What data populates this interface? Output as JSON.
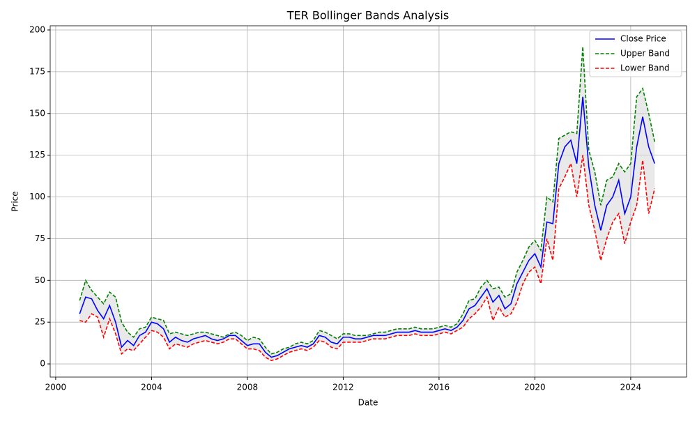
{
  "chart_data": {
    "type": "line",
    "title": "TER Bollinger Bands Analysis",
    "xlabel": "Date",
    "ylabel": "Price",
    "x": [
      2001,
      2001.25,
      2001.5,
      2001.75,
      2002,
      2002.25,
      2002.5,
      2002.75,
      2003,
      2003.25,
      2003.5,
      2003.75,
      2004,
      2004.25,
      2004.5,
      2004.75,
      2005,
      2005.25,
      2005.5,
      2005.75,
      2006,
      2006.25,
      2006.5,
      2006.75,
      2007,
      2007.25,
      2007.5,
      2007.75,
      2008,
      2008.25,
      2008.5,
      2008.75,
      2009,
      2009.25,
      2009.5,
      2009.75,
      2010,
      2010.25,
      2010.5,
      2010.75,
      2011,
      2011.25,
      2011.5,
      2011.75,
      2012,
      2012.25,
      2012.5,
      2012.75,
      2013,
      2013.25,
      2013.5,
      2013.75,
      2014,
      2014.25,
      2014.5,
      2014.75,
      2015,
      2015.25,
      2015.5,
      2015.75,
      2016,
      2016.25,
      2016.5,
      2016.75,
      2017,
      2017.25,
      2017.5,
      2017.75,
      2018,
      2018.25,
      2018.5,
      2018.75,
      2019,
      2019.25,
      2019.5,
      2019.75,
      2020,
      2020.25,
      2020.5,
      2020.75,
      2021,
      2021.25,
      2021.5,
      2021.75,
      2022,
      2022.25,
      2022.5,
      2022.75,
      2023,
      2023.25,
      2023.5,
      2023.75,
      2024,
      2024.25,
      2024.5,
      2024.75,
      2025
    ],
    "series": [
      {
        "name": "Close Price",
        "color": "#0000ff",
        "dash": false,
        "values": [
          30,
          40,
          39,
          32,
          27,
          35,
          25,
          10,
          14,
          11,
          17,
          19,
          25,
          24,
          21,
          13,
          16,
          14,
          13,
          15,
          16,
          17,
          15,
          14,
          15,
          17,
          17,
          14,
          11,
          12,
          12,
          7,
          4,
          5,
          7,
          9,
          10,
          11,
          10,
          12,
          17,
          16,
          13,
          12,
          16,
          16,
          15,
          15,
          16,
          17,
          17,
          17,
          18,
          19,
          19,
          19,
          20,
          19,
          19,
          19,
          20,
          21,
          20,
          22,
          26,
          33,
          35,
          40,
          45,
          37,
          41,
          33,
          36,
          48,
          55,
          62,
          66,
          58,
          85,
          84,
          120,
          130,
          134,
          120,
          160,
          118,
          95,
          80,
          95,
          100,
          110,
          90,
          100,
          130,
          148,
          130,
          120
        ]
      },
      {
        "name": "Upper Band",
        "color": "#008000",
        "dash": true,
        "values": [
          38,
          50,
          44,
          40,
          36,
          43,
          40,
          25,
          19,
          16,
          21,
          22,
          28,
          27,
          26,
          18,
          19,
          18,
          17,
          18,
          19,
          19,
          18,
          17,
          16,
          18,
          19,
          17,
          14,
          16,
          15,
          10,
          6,
          7,
          9,
          10,
          12,
          13,
          12,
          14,
          20,
          19,
          17,
          15,
          18,
          18,
          17,
          17,
          17,
          18,
          19,
          19,
          20,
          21,
          21,
          21,
          22,
          21,
          21,
          21,
          22,
          23,
          22,
          24,
          30,
          38,
          39,
          46,
          50,
          45,
          46,
          40,
          42,
          55,
          62,
          70,
          74,
          68,
          100,
          97,
          135,
          137,
          139,
          138,
          190,
          128,
          115,
          95,
          110,
          112,
          120,
          115,
          120,
          160,
          165,
          150,
          133
        ]
      },
      {
        "name": "Lower Band",
        "color": "#ff0000",
        "dash": true,
        "values": [
          26,
          25,
          30,
          28,
          16,
          27,
          18,
          6,
          9,
          8,
          12,
          16,
          20,
          19,
          16,
          9,
          12,
          11,
          10,
          12,
          13,
          14,
          13,
          12,
          13,
          15,
          15,
          12,
          9,
          9,
          8,
          4,
          2,
          3,
          5,
          7,
          8,
          9,
          8,
          10,
          14,
          13,
          10,
          9,
          13,
          13,
          13,
          13,
          14,
          15,
          15,
          15,
          16,
          17,
          17,
          17,
          18,
          17,
          17,
          17,
          18,
          19,
          18,
          20,
          22,
          27,
          30,
          34,
          40,
          26,
          34,
          28,
          30,
          37,
          48,
          55,
          58,
          48,
          75,
          62,
          105,
          112,
          120,
          100,
          125,
          95,
          80,
          62,
          75,
          85,
          90,
          72,
          85,
          95,
          122,
          90,
          105
        ]
      }
    ],
    "band_fill": "#d3d3d3",
    "xlim": [
      1999.77,
      2026.33
    ],
    "xticks": [
      2000,
      2004,
      2008,
      2012,
      2016,
      2020,
      2024
    ],
    "ylim": [
      -7.9,
      202.5
    ],
    "yticks": [
      0,
      25,
      50,
      75,
      100,
      125,
      150,
      175,
      200
    ],
    "grid": true,
    "legend": "upper right"
  }
}
